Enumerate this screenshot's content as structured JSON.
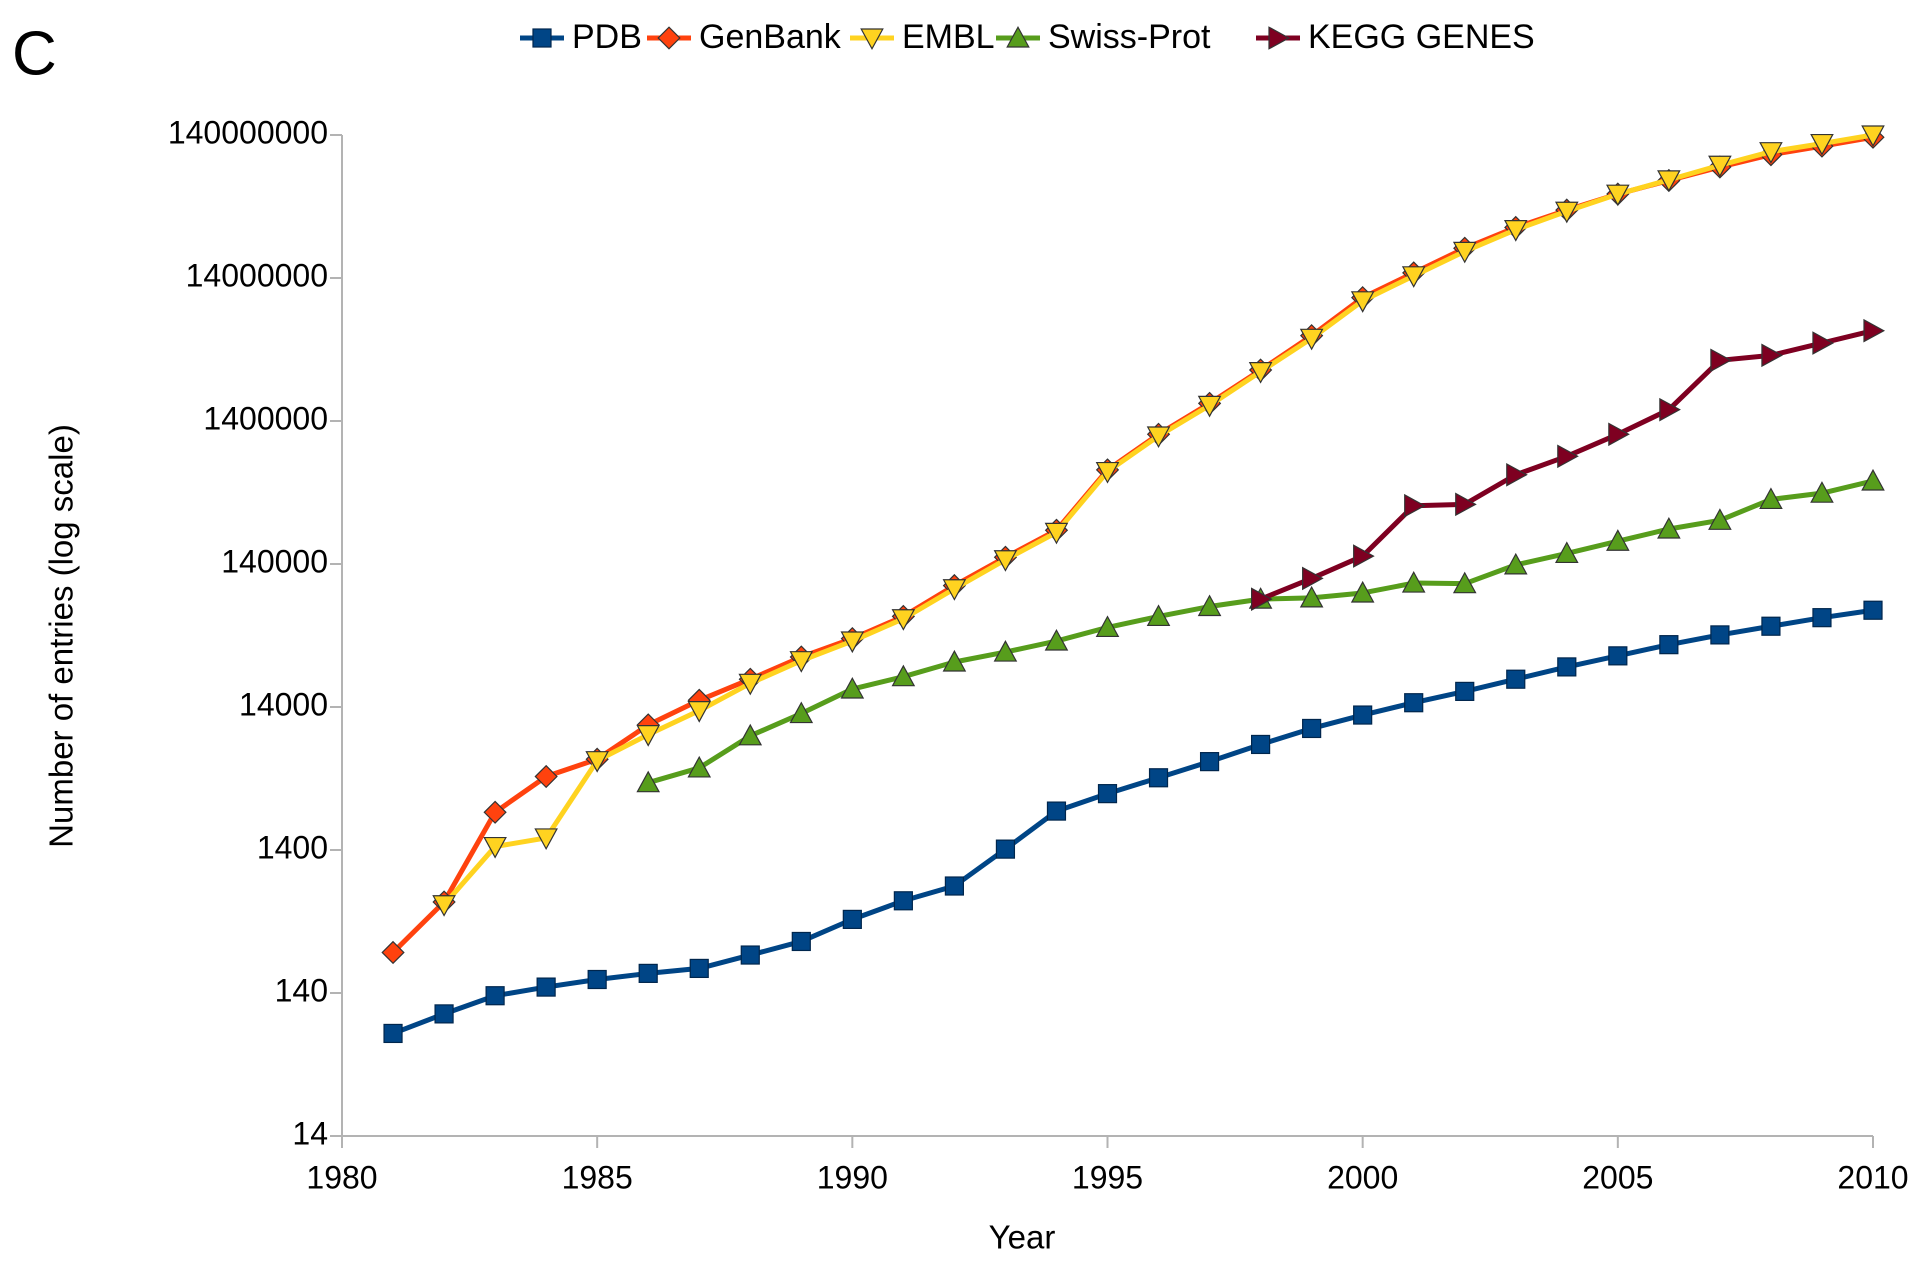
{
  "chart_data": {
    "type": "line",
    "panel_label": "C",
    "x_label": "Year",
    "y_label": "Number of entries (log scale)",
    "log_scale": true,
    "grid": false,
    "legend": "top",
    "xlim": [
      1980,
      2010
    ],
    "xticks": [
      1980,
      1985,
      1990,
      1995,
      2000,
      2005,
      2010
    ],
    "ylim": [
      14,
      140000000
    ],
    "yticks": [
      14,
      140,
      1400,
      14000,
      140000,
      1400000,
      14000000,
      140000000
    ],
    "x": [
      1981,
      1982,
      1983,
      1984,
      1985,
      1986,
      1987,
      1988,
      1989,
      1990,
      1991,
      1992,
      1993,
      1994,
      1995,
      1996,
      1997,
      1998,
      1999,
      2000,
      2001,
      2002,
      2003,
      2004,
      2005,
      2006,
      2007,
      2008,
      2009,
      2010
    ],
    "series": [
      {
        "name": "PDB",
        "color": "#004586",
        "marker": "square",
        "values": [
          73,
          100,
          134,
          154,
          174,
          192,
          208,
          258,
          321,
          458,
          618,
          784,
          1420,
          2620,
          3470,
          4480,
          5810,
          7660,
          9910,
          12300,
          15000,
          18000,
          21900,
          26700,
          31900,
          38200,
          44700,
          51400,
          59000,
          66500
        ]
      },
      {
        "name": "GenBank",
        "color": "#ff420e",
        "marker": "diamond",
        "values": [
          269,
          606,
          2570,
          4570,
          6040,
          10500,
          15600,
          21900,
          31300,
          42100,
          60200,
          98900,
          156000,
          241000,
          637000,
          1130000,
          1860000,
          3180000,
          5530000,
          10200000,
          15200000,
          22600000,
          31600000,
          41800000,
          54100000,
          67300000,
          83600000,
          102000000,
          117000000,
          135000000
        ]
      },
      {
        "name": "EMBL",
        "color": "#ffd320",
        "marker": "triangle-down",
        "values": [
          null,
          580,
          1480,
          1700,
          5900,
          8970,
          13200,
          20500,
          29500,
          40500,
          58000,
          94000,
          150000,
          233000,
          620000,
          1100000,
          1800000,
          3100000,
          5300000,
          9700000,
          14500000,
          21500000,
          30500000,
          41000000,
          54000000,
          68000000,
          86000000,
          107000000,
          122000000,
          140000000
        ]
      },
      {
        "name": "Swiss-Prot",
        "color": "#579d1c",
        "marker": "triangle-up",
        "values": [
          null,
          null,
          null,
          null,
          null,
          4140,
          5250,
          8800,
          12600,
          18700,
          22800,
          28900,
          33900,
          40500,
          50400,
          60200,
          70600,
          79500,
          81100,
          87800,
          103000,
          102000,
          138000,
          166000,
          202000,
          246000,
          283000,
          396000,
          438000,
          533000
        ]
      },
      {
        "name": "KEGG GENES",
        "color": "#7e0021",
        "marker": "triangle-right",
        "values": [
          null,
          null,
          null,
          null,
          null,
          null,
          null,
          null,
          null,
          null,
          null,
          null,
          null,
          null,
          null,
          null,
          null,
          79500,
          111000,
          159000,
          358000,
          366000,
          589000,
          793000,
          1130000,
          1680000,
          3720000,
          4030000,
          4910000,
          5990000
        ]
      }
    ]
  }
}
